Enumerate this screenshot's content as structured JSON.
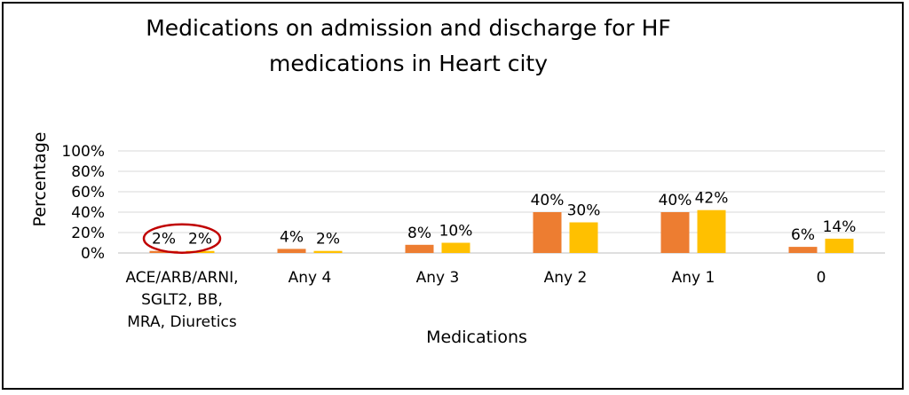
{
  "chart_data": {
    "type": "bar",
    "title": [
      "Medications on admission and discharge for HF",
      "medications in Heart city"
    ],
    "xlabel": "Medications",
    "ylabel": "Percentage",
    "ylim": [
      0,
      100
    ],
    "yticks": [
      "0%",
      "20%",
      "40%",
      "60%",
      "80%",
      "100%"
    ],
    "grid": true,
    "categories": [
      [
        "ACE/ARB/ARNI,",
        "SGLT2, BB,",
        "MRA, Diuretics"
      ],
      [
        "Any 4"
      ],
      [
        "Any 3"
      ],
      [
        "Any 2"
      ],
      [
        "Any 1"
      ],
      [
        "0"
      ]
    ],
    "series": [
      {
        "values": [
          2,
          4,
          8,
          40,
          40,
          6
        ],
        "labels": [
          "2%",
          "4%",
          "8%",
          "40%",
          "40%",
          "6%"
        ],
        "color": "#ED7D31"
      },
      {
        "values": [
          2,
          2,
          10,
          30,
          42,
          14
        ],
        "labels": [
          "2%",
          "2%",
          "10%",
          "30%",
          "42%",
          "14%"
        ],
        "color": "#FFC000"
      }
    ],
    "annotation": {
      "type": "ellipse",
      "around_category": 0,
      "color": "#C00000"
    }
  }
}
